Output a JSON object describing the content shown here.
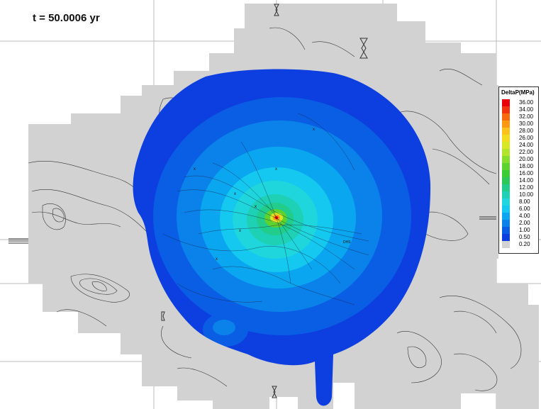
{
  "time_label": "t = 50.0006 yr",
  "legend": {
    "title": "DeltaP(MPa)",
    "entries": [
      {
        "value": "36.00",
        "color": "#e8000b"
      },
      {
        "value": "34.00",
        "color": "#f03510"
      },
      {
        "value": "32.00",
        "color": "#f66a10"
      },
      {
        "value": "30.00",
        "color": "#fb9a12"
      },
      {
        "value": "28.00",
        "color": "#fcc21b"
      },
      {
        "value": "26.00",
        "color": "#f2dc20"
      },
      {
        "value": "24.00",
        "color": "#d8e828"
      },
      {
        "value": "22.00",
        "color": "#b3e42c"
      },
      {
        "value": "20.00",
        "color": "#88dc2c"
      },
      {
        "value": "18.00",
        "color": "#5ed22e"
      },
      {
        "value": "16.00",
        "color": "#3ccc36"
      },
      {
        "value": "14.00",
        "color": "#2cc85a"
      },
      {
        "value": "12.00",
        "color": "#22cc8a"
      },
      {
        "value": "10.00",
        "color": "#1ed0b4"
      },
      {
        "value": "8.00",
        "color": "#1ed6dc"
      },
      {
        "value": "6.00",
        "color": "#14c8f0"
      },
      {
        "value": "4.00",
        "color": "#0aa6f0"
      },
      {
        "value": "2.00",
        "color": "#0a82ea"
      },
      {
        "value": "1.00",
        "color": "#0a5ee4"
      },
      {
        "value": "0.50",
        "color": "#0c3ee0"
      },
      {
        "value": "0.20",
        "color": "#d2d2d2"
      }
    ]
  },
  "well_labels": [
    "DHS"
  ],
  "colors": {
    "background_domain": "#d2d2d2",
    "contour_lines": "#333333",
    "grid_lines": "#bbbbbb",
    "border": "#333333"
  }
}
